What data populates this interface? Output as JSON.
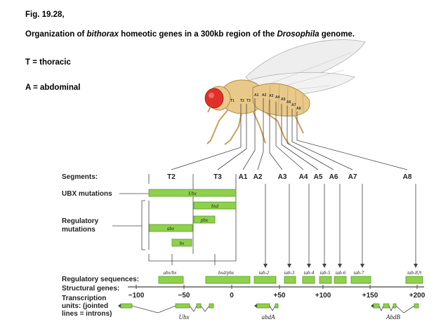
{
  "caption": {
    "fig": "Fig. 19.28,",
    "line2_a": "Organization of ",
    "line2_b": "bithorax",
    "line2_c": " homeotic genes in a 300kb region of the ",
    "line2_d": "Drosophila",
    "line2_e": " genome.",
    "t_def": "T = thoracic",
    "a_def": "A = abdominal"
  },
  "fly_labels": [
    "T1",
    "T2",
    "T3",
    "A1",
    "A2",
    "A3",
    "A4",
    "A5",
    "A6",
    "A7",
    "A8"
  ],
  "row_labels": {
    "segments": "Segments:",
    "ubx_mutations": "UBX mutations",
    "regulatory_mutations_1": "Regulatory",
    "regulatory_mutations_2": "mutations",
    "regulatory_sequences": "Regulatory sequences:",
    "structural_genes": "Structural genes:",
    "transcription_1": "Transcription",
    "transcription_2": "units:  (jointed",
    "transcription_3": "lines = introns)"
  },
  "segments": [
    "T2",
    "T3",
    "A1",
    "A2",
    "A3",
    "A4",
    "A5",
    "A6",
    "A7",
    "A8"
  ],
  "mutation_bars": [
    "Ubx",
    "bxd",
    "pbx",
    "abx",
    "bx"
  ],
  "regulatory_sequences": [
    "abx/bx",
    "bxd/pbx",
    "iab-2",
    "iab-3",
    "iab-4",
    "iab-5",
    "iab-6",
    "iab-7",
    "iab-8,9"
  ],
  "scale_ticks": [
    "−100",
    "−50",
    "0",
    "+50",
    "+100",
    "+150",
    "+200"
  ],
  "genes": [
    "Ubx",
    "abdA",
    "AbdB"
  ],
  "colors": {
    "bar": "#8ed14a",
    "bar_stroke": "#5e9a2a",
    "fly_body": "#e8c98a",
    "fly_eye": "#e0302a"
  }
}
